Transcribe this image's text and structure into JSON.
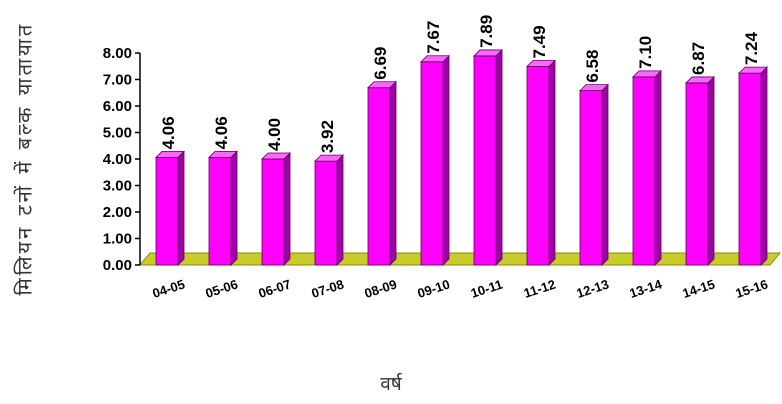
{
  "chart_data": {
    "type": "bar",
    "xlabel": "वर्ष",
    "ylabel": "मिलियन टनों में बल्क यातायात",
    "categories": [
      "04-05",
      "05-06",
      "06-07",
      "07-08",
      "08-09",
      "09-10",
      "10-11",
      "11-12",
      "12-13",
      "13-14",
      "14-15",
      "15-16"
    ],
    "values": [
      4.06,
      4.06,
      4.0,
      3.92,
      6.69,
      7.67,
      7.89,
      7.49,
      6.58,
      7.1,
      6.87,
      7.24
    ],
    "value_labels": [
      "4.06",
      "4.06",
      "4.00",
      "3.92",
      "6.69",
      "7.67",
      "7.89",
      "7.49",
      "6.58",
      "7.10",
      "6.87",
      "7.24"
    ],
    "ylim": [
      0,
      8
    ],
    "yticks": [
      "0.00",
      "1.00",
      "2.00",
      "3.00",
      "4.00",
      "5.00",
      "6.00",
      "7.00",
      "8.00"
    ],
    "grid": false,
    "legend": "none",
    "colors": {
      "bar_front": "#ff00ff",
      "bar_side": "#a000a8",
      "bar_top": "#ff66ff",
      "floor": "#c8cc2a",
      "axis": "#000000"
    }
  }
}
